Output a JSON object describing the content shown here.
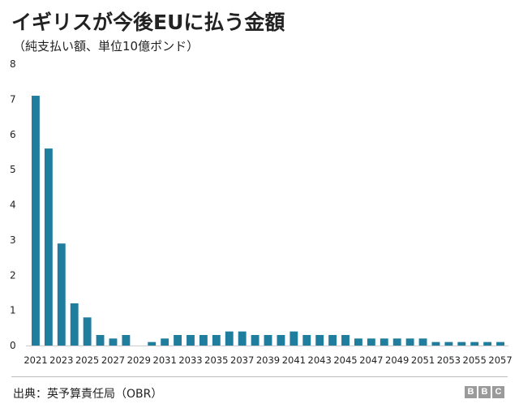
{
  "title": "イギリスが今後EUに払う金額",
  "subtitle": "（純支払い額、単位10億ポンド）",
  "source": "出典：英予算責任局（OBR）",
  "logo": [
    "B",
    "B",
    "C"
  ],
  "colors": {
    "bar": "#1f7d9e",
    "axis": "#cccccc",
    "text": "#222222"
  },
  "chart_data": {
    "type": "bar",
    "title": "イギリスが今後EUに払う金額",
    "subtitle": "（純支払い額、単位10億ポンド）",
    "xlabel": "",
    "ylabel": "",
    "ylim": [
      0,
      8
    ],
    "yticks": [
      0,
      1,
      2,
      3,
      4,
      5,
      6,
      7,
      8
    ],
    "grid": false,
    "categories": [
      "2021",
      "2022",
      "2023",
      "2024",
      "2025",
      "2026",
      "2027",
      "2028",
      "2029",
      "2030",
      "2031",
      "2032",
      "2033",
      "2034",
      "2035",
      "2036",
      "2037",
      "2038",
      "2039",
      "2040",
      "2041",
      "2042",
      "2043",
      "2044",
      "2045",
      "2046",
      "2047",
      "2048",
      "2049",
      "2050",
      "2051",
      "2052",
      "2053",
      "2054",
      "2055",
      "2056",
      "2057"
    ],
    "xtick_labels": [
      "2021",
      "2023",
      "2025",
      "2027",
      "2029",
      "2031",
      "2033",
      "2035",
      "2037",
      "2039",
      "2041",
      "2043",
      "2045",
      "2047",
      "2049",
      "2051",
      "2053",
      "2055",
      "2057"
    ],
    "values": [
      7.1,
      5.6,
      2.9,
      1.2,
      0.8,
      0.3,
      0.2,
      0.3,
      0.0,
      0.1,
      0.2,
      0.3,
      0.3,
      0.3,
      0.3,
      0.4,
      0.4,
      0.3,
      0.3,
      0.3,
      0.4,
      0.3,
      0.3,
      0.3,
      0.3,
      0.2,
      0.2,
      0.2,
      0.2,
      0.2,
      0.2,
      0.1,
      0.1,
      0.1,
      0.1,
      0.1,
      0.1
    ]
  }
}
